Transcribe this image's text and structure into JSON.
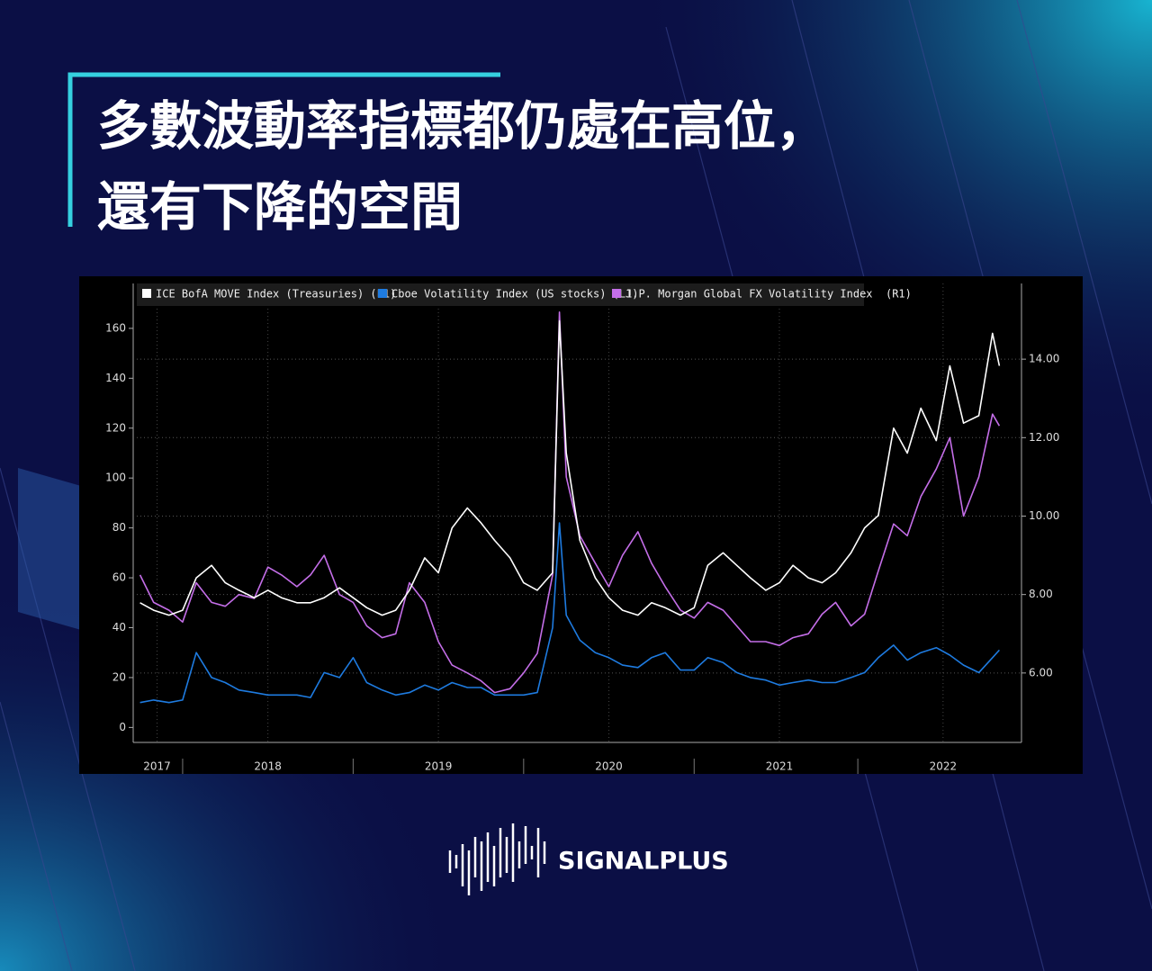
{
  "header": {
    "title_lines": [
      "多數波動率指標都仍處在高位，",
      "還有下降的空間"
    ]
  },
  "brand": "SIGNALPLUS",
  "chart_data": {
    "type": "line",
    "x": [
      2017.75,
      2017.83,
      2017.92,
      2018.0,
      2018.08,
      2018.17,
      2018.25,
      2018.33,
      2018.42,
      2018.5,
      2018.58,
      2018.67,
      2018.75,
      2018.83,
      2018.92,
      2019.0,
      2019.08,
      2019.17,
      2019.25,
      2019.33,
      2019.42,
      2019.5,
      2019.58,
      2019.67,
      2019.75,
      2019.83,
      2019.92,
      2020.0,
      2020.08,
      2020.17,
      2020.21,
      2020.25,
      2020.33,
      2020.42,
      2020.5,
      2020.58,
      2020.67,
      2020.75,
      2020.83,
      2020.92,
      2021.0,
      2021.08,
      2021.17,
      2021.25,
      2021.33,
      2021.42,
      2021.5,
      2021.58,
      2021.67,
      2021.75,
      2021.83,
      2021.92,
      2022.0,
      2022.08,
      2022.17,
      2022.25,
      2022.33,
      2022.42,
      2022.5,
      2022.58,
      2022.67,
      2022.75,
      2022.79
    ],
    "xlim": [
      2017.71,
      2022.92
    ],
    "xticks": [
      {
        "value": 2017.85,
        "label": "2017"
      },
      {
        "value": 2018.5,
        "label": "2018"
      },
      {
        "value": 2019.5,
        "label": "2019"
      },
      {
        "value": 2020.5,
        "label": "2020"
      },
      {
        "value": 2021.5,
        "label": "2021"
      },
      {
        "value": 2022.46,
        "label": "2022"
      }
    ],
    "ylim": [
      -6,
      178
    ],
    "yticks": [
      0,
      20,
      40,
      60,
      80,
      100,
      120,
      140,
      160
    ],
    "y2lim": [
      4.23,
      15.93
    ],
    "y2ticks": [
      {
        "value": 6,
        "label": "6.00"
      },
      {
        "value": 8,
        "label": "8.00"
      },
      {
        "value": 10,
        "label": "10.00"
      },
      {
        "value": 12,
        "label": "12.00"
      },
      {
        "value": 14,
        "label": "14.00"
      }
    ],
    "grid": true,
    "series": [
      {
        "name": "ICE BofA MOVE Index (Treasuries) (L1)",
        "color": "#ffffff",
        "values": [
          50,
          47,
          45,
          47,
          60,
          65,
          58,
          55,
          52,
          55,
          52,
          50,
          50,
          52,
          56,
          52,
          48,
          45,
          47,
          55,
          68,
          62,
          80,
          88,
          82,
          75,
          68,
          58,
          55,
          62,
          163,
          110,
          75,
          60,
          52,
          47,
          45,
          50,
          48,
          45,
          48,
          65,
          70,
          65,
          60,
          55,
          58,
          65,
          60,
          58,
          62,
          70,
          80,
          85,
          120,
          110,
          128,
          115,
          145,
          122,
          125,
          158,
          145
        ]
      },
      {
        "name": "Cboe Volatility Index (US stocks) (L1)",
        "color": "#1e7be0",
        "values": [
          10,
          11,
          10,
          11,
          30,
          20,
          18,
          15,
          14,
          13,
          13,
          13,
          12,
          22,
          20,
          28,
          18,
          15,
          13,
          14,
          17,
          15,
          18,
          16,
          16,
          13,
          13,
          13,
          14,
          40,
          82,
          45,
          35,
          30,
          28,
          25,
          24,
          28,
          30,
          23,
          23,
          28,
          26,
          22,
          20,
          19,
          17,
          18,
          19,
          18,
          18,
          20,
          22,
          28,
          33,
          27,
          30,
          32,
          29,
          25,
          22,
          28,
          31
        ]
      },
      {
        "name": "J.P. Morgan Global FX Volatility Index  (R1)",
        "color": "#c46ee8",
        "axis": "y2",
        "values": [
          8.5,
          7.8,
          7.6,
          7.3,
          8.3,
          7.8,
          7.7,
          8.0,
          7.9,
          8.7,
          8.5,
          8.2,
          8.5,
          9.0,
          8.0,
          7.8,
          7.2,
          6.9,
          7.0,
          8.3,
          7.8,
          6.8,
          6.2,
          6.0,
          5.8,
          5.5,
          5.6,
          6.0,
          6.5,
          8.5,
          15.2,
          11.0,
          9.5,
          8.8,
          8.2,
          9.0,
          9.6,
          8.8,
          8.2,
          7.6,
          7.4,
          7.8,
          7.6,
          7.2,
          6.8,
          6.8,
          6.7,
          6.9,
          7.0,
          7.5,
          7.8,
          7.2,
          7.5,
          8.6,
          9.8,
          9.5,
          10.5,
          11.2,
          12.0,
          10.0,
          11.0,
          12.6,
          12.3
        ]
      }
    ]
  }
}
